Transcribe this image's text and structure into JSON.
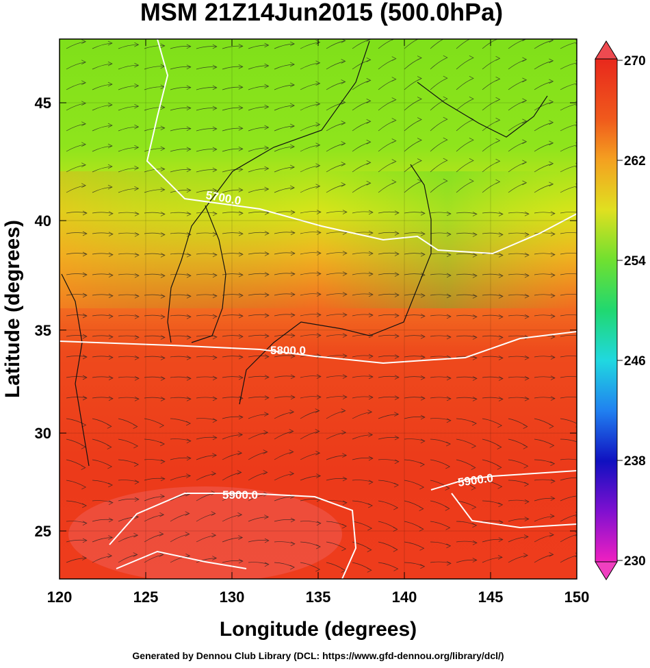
{
  "title": "MSM 21Z14Jun2015 (500.0hPa)",
  "x_axis": {
    "label": "Longitude (degrees)",
    "ticks": [
      120,
      125,
      130,
      135,
      140,
      145,
      150
    ]
  },
  "y_axis": {
    "label": "Latitude  (degrees)",
    "ticks": [
      25,
      30,
      35,
      40,
      45
    ]
  },
  "colorbar": {
    "ticks": [
      230,
      238,
      246,
      254,
      262,
      270
    ]
  },
  "contour_labels": [
    "5700.0",
    "5800.0",
    "5900.0",
    "5900.0"
  ],
  "footer": "Generated by Dennou Club Library (DCL: https://www.gfd-dennou.org/library/dcl/)"
}
